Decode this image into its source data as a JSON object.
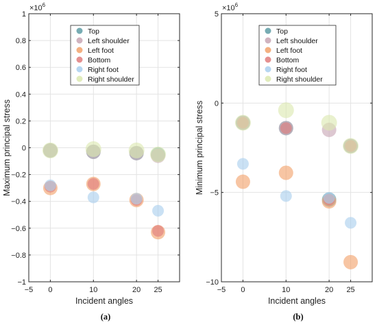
{
  "chart_data": [
    {
      "type": "scatter",
      "panel_label": "(a)",
      "xlabel": "Incident angles",
      "ylabel": "Maximum principal stress",
      "y_exponent": "×10",
      "y_exponent_power": "6",
      "xlim": [
        -5,
        30
      ],
      "ylim": [
        -1,
        1
      ],
      "xticks": [
        -5,
        0,
        10,
        20,
        25
      ],
      "yticks": [
        -1,
        -0.8,
        -0.6,
        -0.4,
        -0.2,
        0,
        0.2,
        0.4,
        0.6,
        0.8,
        1
      ],
      "grid": true,
      "legend_position": "top-center",
      "series": [
        {
          "name": "Top",
          "color": "#5f9ea6",
          "x": [
            0,
            10,
            20,
            25
          ],
          "y": [
            -0.02,
            -0.03,
            -0.04,
            -0.05
          ]
        },
        {
          "name": "Left shoulder",
          "color": "#c8a6b4",
          "x": [
            0,
            10,
            20,
            25
          ],
          "y": [
            -0.02,
            -0.03,
            -0.04,
            -0.06
          ]
        },
        {
          "name": "Left foot",
          "color": "#f2a26b",
          "x": [
            0,
            10,
            20,
            25
          ],
          "y": [
            -0.3,
            -0.27,
            -0.39,
            -0.63
          ]
        },
        {
          "name": "Bottom",
          "color": "#e07d7d",
          "x": [
            0,
            10,
            20,
            25
          ],
          "y": [
            -0.29,
            -0.27,
            -0.39,
            -0.62
          ]
        },
        {
          "name": "Right foot",
          "color": "#a9cfee",
          "x": [
            0,
            10,
            20,
            25
          ],
          "y": [
            -0.28,
            -0.37,
            -0.38,
            -0.47
          ]
        },
        {
          "name": "Right shoulder",
          "color": "#dce9b0",
          "x": [
            0,
            10,
            20,
            25
          ],
          "y": [
            -0.02,
            -0.01,
            -0.02,
            -0.05
          ]
        }
      ]
    },
    {
      "type": "scatter",
      "panel_label": "(b)",
      "xlabel": "Incident angles",
      "ylabel": "Minimum principal stress",
      "y_exponent": "×10",
      "y_exponent_power": "6",
      "xlim": [
        -5,
        30
      ],
      "ylim": [
        -10,
        5
      ],
      "xticks": [
        -5,
        0,
        10,
        20,
        25
      ],
      "yticks": [
        -10,
        -5,
        0,
        5
      ],
      "grid": true,
      "legend_position": "top-center",
      "series": [
        {
          "name": "Top",
          "color": "#5f9ea6",
          "x": [
            0,
            10,
            20,
            25
          ],
          "y": [
            -1.1,
            -1.4,
            -5.4,
            -2.4
          ]
        },
        {
          "name": "Left shoulder",
          "color": "#c8a6b4",
          "x": [
            0,
            10,
            20,
            25
          ],
          "y": [
            -1.1,
            -1.4,
            -1.5,
            -2.4
          ]
        },
        {
          "name": "Left foot",
          "color": "#f2a26b",
          "x": [
            0,
            10,
            20,
            25
          ],
          "y": [
            -4.4,
            -3.9,
            -5.5,
            -8.9
          ]
        },
        {
          "name": "Bottom",
          "color": "#e07d7d",
          "x": [
            0,
            10,
            20,
            25
          ],
          "y": [
            -1.1,
            -1.4,
            -5.4,
            -2.4
          ]
        },
        {
          "name": "Right foot",
          "color": "#a9cfee",
          "x": [
            0,
            10,
            20,
            25
          ],
          "y": [
            -3.4,
            -5.2,
            -5.3,
            -6.7
          ]
        },
        {
          "name": "Right shoulder",
          "color": "#dce9b0",
          "x": [
            0,
            10,
            20,
            25
          ],
          "y": [
            -1.1,
            -0.4,
            -1.1,
            -2.4
          ]
        }
      ]
    }
  ]
}
